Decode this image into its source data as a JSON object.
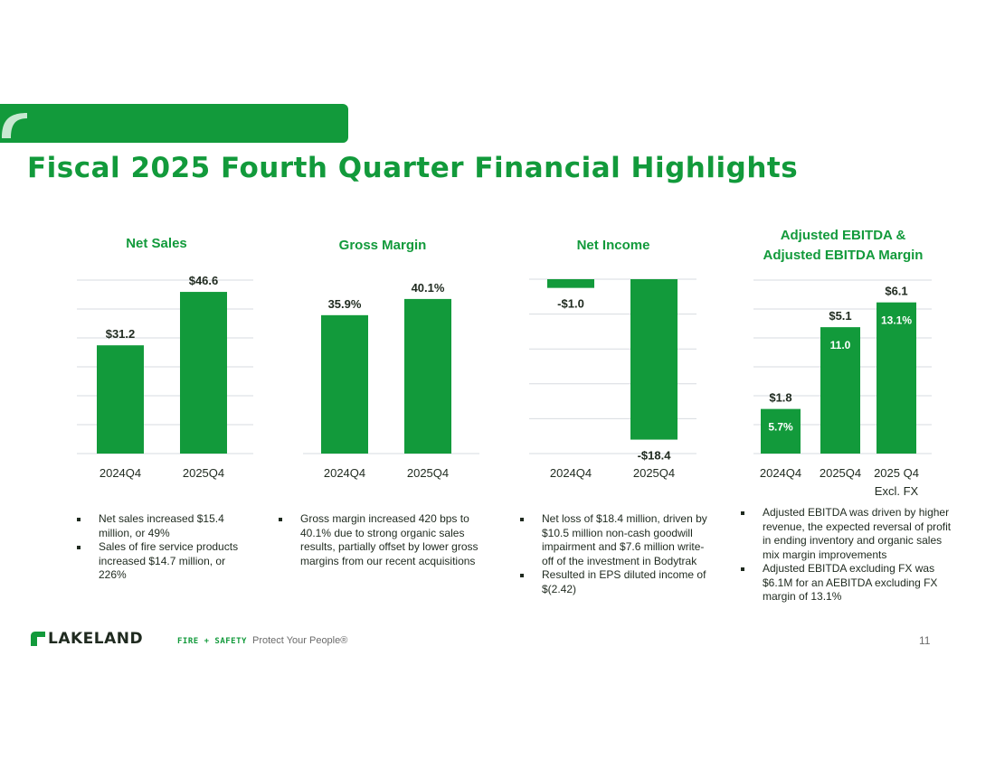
{
  "slide": {
    "title": "Fiscal 2025 Fourth Quarter Financial Highlights",
    "page_number": "11",
    "tagline": "Protect Your People®",
    "logo_text": "LAKELAND",
    "logo_subtext": "FIRE + SAFETY",
    "accent_color": "#129a3b"
  },
  "chart_data": [
    {
      "type": "bar",
      "title": "Net Sales",
      "categories": [
        "2024Q4",
        "2025Q4"
      ],
      "values": [
        31.2,
        46.6
      ],
      "value_labels": [
        "$31.2",
        "$46.6"
      ],
      "ylim": [
        0,
        50
      ],
      "grid": true
    },
    {
      "type": "bar",
      "title": "Gross Margin",
      "categories": [
        "2024Q4",
        "2025Q4"
      ],
      "values": [
        35.9,
        40.1
      ],
      "value_labels": [
        "35.9%",
        "40.1%"
      ],
      "ylim": [
        0,
        45
      ],
      "grid": true
    },
    {
      "type": "bar",
      "title": "Net Income",
      "categories": [
        "2024Q4",
        "2025Q4"
      ],
      "values": [
        -1.0,
        -18.4
      ],
      "value_labels": [
        "-$1.0",
        "-$18.4"
      ],
      "ylim": [
        -20,
        0
      ],
      "grid": true
    },
    {
      "type": "bar",
      "title": "Adjusted EBITDA & Adjusted EBITDA Margin",
      "title_lines": [
        "Adjusted EBITDA &",
        "Adjusted EBITDA Margin"
      ],
      "categories": [
        "2024Q4",
        "2025Q4",
        "2025 Q4 Excl. FX"
      ],
      "category_lines": [
        [
          "2024Q4"
        ],
        [
          "2025Q4"
        ],
        [
          "2025 Q4",
          "Excl. FX"
        ]
      ],
      "values": [
        1.8,
        5.1,
        6.1
      ],
      "value_labels": [
        "$1.8",
        "$5.1",
        "$6.1"
      ],
      "margin_labels": [
        "5.7%",
        "11.0",
        "13.1%"
      ],
      "ylim": [
        0,
        7
      ],
      "grid": true
    }
  ],
  "bullets": [
    [
      "Net sales increased $15.4 million, or 49%",
      "Sales of fire service products increased $14.7 million, or 226%"
    ],
    [
      "Gross margin increased 420 bps to 40.1% due to strong organic sales results, partially offset by lower gross margins from our recent acquisitions"
    ],
    [
      "Net loss of $18.4 million, driven by $10.5 million non-cash goodwill impairment and $7.6 million write-off of the investment in Bodytrak",
      "Resulted in EPS diluted income of $(2.42)"
    ],
    [
      "Adjusted EBITDA was driven by higher revenue, the expected reversal of profit in ending inventory and organic sales mix margin improvements",
      "Adjusted EBITDA excluding FX was $6.1M for an AEBITDA excluding FX margin of 13.1%"
    ]
  ]
}
